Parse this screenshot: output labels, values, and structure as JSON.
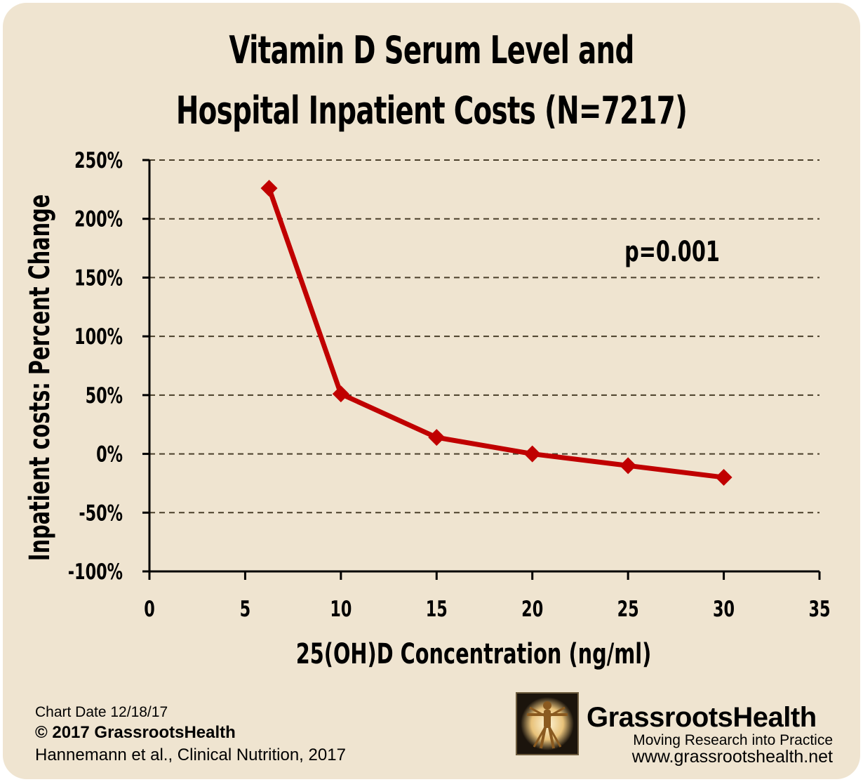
{
  "chart_data": {
    "type": "line",
    "title_line1": "Vitamin D Serum Level and",
    "title_line2": "Hospital Inpatient Costs (N=7217)",
    "xlabel": "25(OH)D Concentration (ng/ml)",
    "ylabel": "Inpatient costs: Percent Change",
    "xlim": [
      0,
      35
    ],
    "ylim": [
      -100,
      250
    ],
    "x_ticks": [
      "0",
      "5",
      "10",
      "15",
      "20",
      "25",
      "30",
      "35"
    ],
    "y_ticks": [
      "250%",
      "200%",
      "150%",
      "100%",
      "50%",
      "0%",
      "-50%",
      "-100%"
    ],
    "grid": "horizontal dashed",
    "series": [
      {
        "color": "#c00000",
        "marker": "diamond",
        "x": [
          6.25,
          10,
          15,
          20,
          25,
          30
        ],
        "y": [
          226,
          51,
          14,
          0,
          -10,
          -20
        ]
      }
    ],
    "annotation": "p=0.001"
  },
  "footer": {
    "chart_date": "Chart Date 12/18/17",
    "copyright": "© 2017 GrassrootsHealth",
    "citation": "Hannemann et al., Clinical Nutrition, 2017"
  },
  "branding": {
    "name": "GrassrootsHealth",
    "tagline": "Moving Research into Practice",
    "website": "www.grassrootshealth.net",
    "logo_icon": "vitruvian-man-icon"
  },
  "colors": {
    "background": "#efe4d0",
    "series": "#c00000",
    "grid": "#4a3f2a"
  }
}
